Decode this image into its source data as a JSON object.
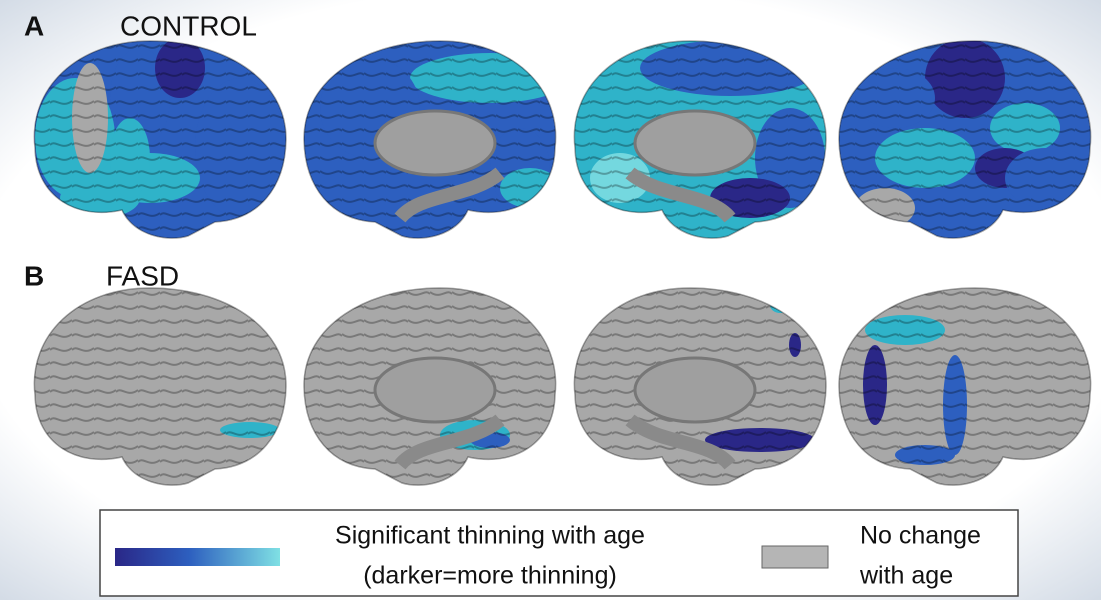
{
  "panels": [
    {
      "letter": "A",
      "label": "CONTROL"
    },
    {
      "letter": "B",
      "label": "FASD"
    }
  ],
  "legend": {
    "thinning": {
      "line1": "Significant thinning with age",
      "line2": "(darker=more thinning)"
    },
    "no_change": {
      "line1": "No change",
      "line2": "with age"
    }
  }
}
